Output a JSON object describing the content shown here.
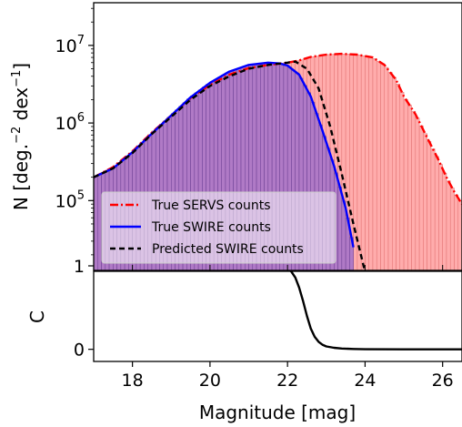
{
  "colors": {
    "servs_fill": "#ffa8a8",
    "servs_bar_edge": "#e07070",
    "swire_fill": "#a774c9",
    "swire_bar_edge": "#6b3f93",
    "servs_line": "#ff0000",
    "swire_line": "#0000ff",
    "predicted_line": "#000000"
  },
  "chart_data": [
    {
      "type": "bar",
      "panel": "top",
      "xlim": [
        17.0,
        26.5
      ],
      "ylim_log10": [
        4.1,
        7.55
      ],
      "yscale": "log",
      "ylabel_main": "N [deg.",
      "ylabel_exp1": "−2",
      "ylabel_mid": " dex",
      "ylabel_exp2": "−1",
      "ylabel_end": "]",
      "yticks": [
        {
          "value": 5,
          "base": "10",
          "exp": "5"
        },
        {
          "value": 6,
          "base": "10",
          "exp": "6"
        },
        {
          "value": 7,
          "base": "10",
          "exp": "7"
        }
      ],
      "legend_position": "lower-left",
      "series": [
        {
          "name": "True SERVS counts",
          "style": "dash-dot",
          "x": [
            17.0,
            17.5,
            18.0,
            18.5,
            19.0,
            19.5,
            20.0,
            20.5,
            21.0,
            21.5,
            22.0,
            22.3,
            22.6,
            23.0,
            23.4,
            23.8,
            24.2,
            24.5,
            24.8,
            25.0,
            25.3,
            25.6,
            25.9,
            26.1,
            26.3,
            26.5
          ],
          "y": [
            200000.0,
            270000.0,
            430000.0,
            750000.0,
            1250000.0,
            2100000.0,
            3100000.0,
            4200000.0,
            5100000.0,
            5600000.0,
            6000000.0,
            6400000.0,
            7100000.0,
            7600000.0,
            7800000.0,
            7600000.0,
            7000000.0,
            5600000.0,
            3600000.0,
            2200000.0,
            1300000.0,
            650000.0,
            330000.0,
            200000.0,
            130000.0,
            90000.0
          ]
        },
        {
          "name": "True SWIRE counts",
          "style": "solid",
          "x": [
            17.0,
            17.5,
            18.0,
            18.5,
            19.0,
            19.5,
            20.0,
            20.5,
            21.0,
            21.5,
            21.8,
            22.0,
            22.3,
            22.6,
            22.9,
            23.2,
            23.5,
            23.7
          ],
          "y": [
            200000.0,
            260000.0,
            420000.0,
            730000.0,
            1250000.0,
            2150000.0,
            3300000.0,
            4600000.0,
            5600000.0,
            6000000.0,
            5850000.0,
            5500000.0,
            4200000.0,
            2200000.0,
            800000.0,
            280000.0,
            80000.0,
            25000.0
          ]
        },
        {
          "name": "Predicted SWIRE counts",
          "style": "dashed",
          "x": [
            17.0,
            17.5,
            18.0,
            18.5,
            19.0,
            19.5,
            20.0,
            20.5,
            21.0,
            21.5,
            22.0,
            22.2,
            22.5,
            22.8,
            23.1,
            23.4,
            23.7,
            24.0
          ],
          "y": [
            200000.0,
            260000.0,
            410000.0,
            720000.0,
            1200000.0,
            2000000.0,
            3000000.0,
            4000000.0,
            5000000.0,
            5600000.0,
            6000000.0,
            6200000.0,
            5000000.0,
            2800000.0,
            900000.0,
            220000.0,
            50000.0,
            12000.0
          ]
        }
      ],
      "histograms": [
        {
          "series_ref": "True SERVS counts",
          "bin_width": 0.1,
          "fill": "servs"
        },
        {
          "series_ref": "True SWIRE counts",
          "bin_width": 0.1,
          "fill": "swire"
        }
      ]
    },
    {
      "type": "line",
      "panel": "bottom",
      "xlim": [
        17.0,
        26.5
      ],
      "ylim": [
        -0.08,
        1.0
      ],
      "ylabel": "C",
      "xlabel": "Magnitude [mag]",
      "xticks": [
        "18",
        "20",
        "22",
        "24",
        "26"
      ],
      "xtick_values": [
        18,
        20,
        22,
        24,
        26
      ],
      "yticks": [
        "0",
        "1"
      ],
      "ytick_values": [
        0,
        1
      ],
      "series": [
        {
          "style": "solid",
          "x": [
            17.0,
            21.5,
            21.8,
            22.0,
            22.1,
            22.2,
            22.3,
            22.4,
            22.5,
            22.6,
            22.7,
            22.8,
            22.9,
            23.0,
            23.2,
            23.4,
            23.7,
            24.0,
            25.0,
            26.5
          ],
          "y": [
            1.0,
            1.0,
            0.99,
            0.97,
            0.93,
            0.86,
            0.74,
            0.58,
            0.4,
            0.25,
            0.15,
            0.09,
            0.055,
            0.035,
            0.018,
            0.01,
            0.004,
            0.001,
            0.0,
            0.0
          ]
        }
      ]
    }
  ]
}
